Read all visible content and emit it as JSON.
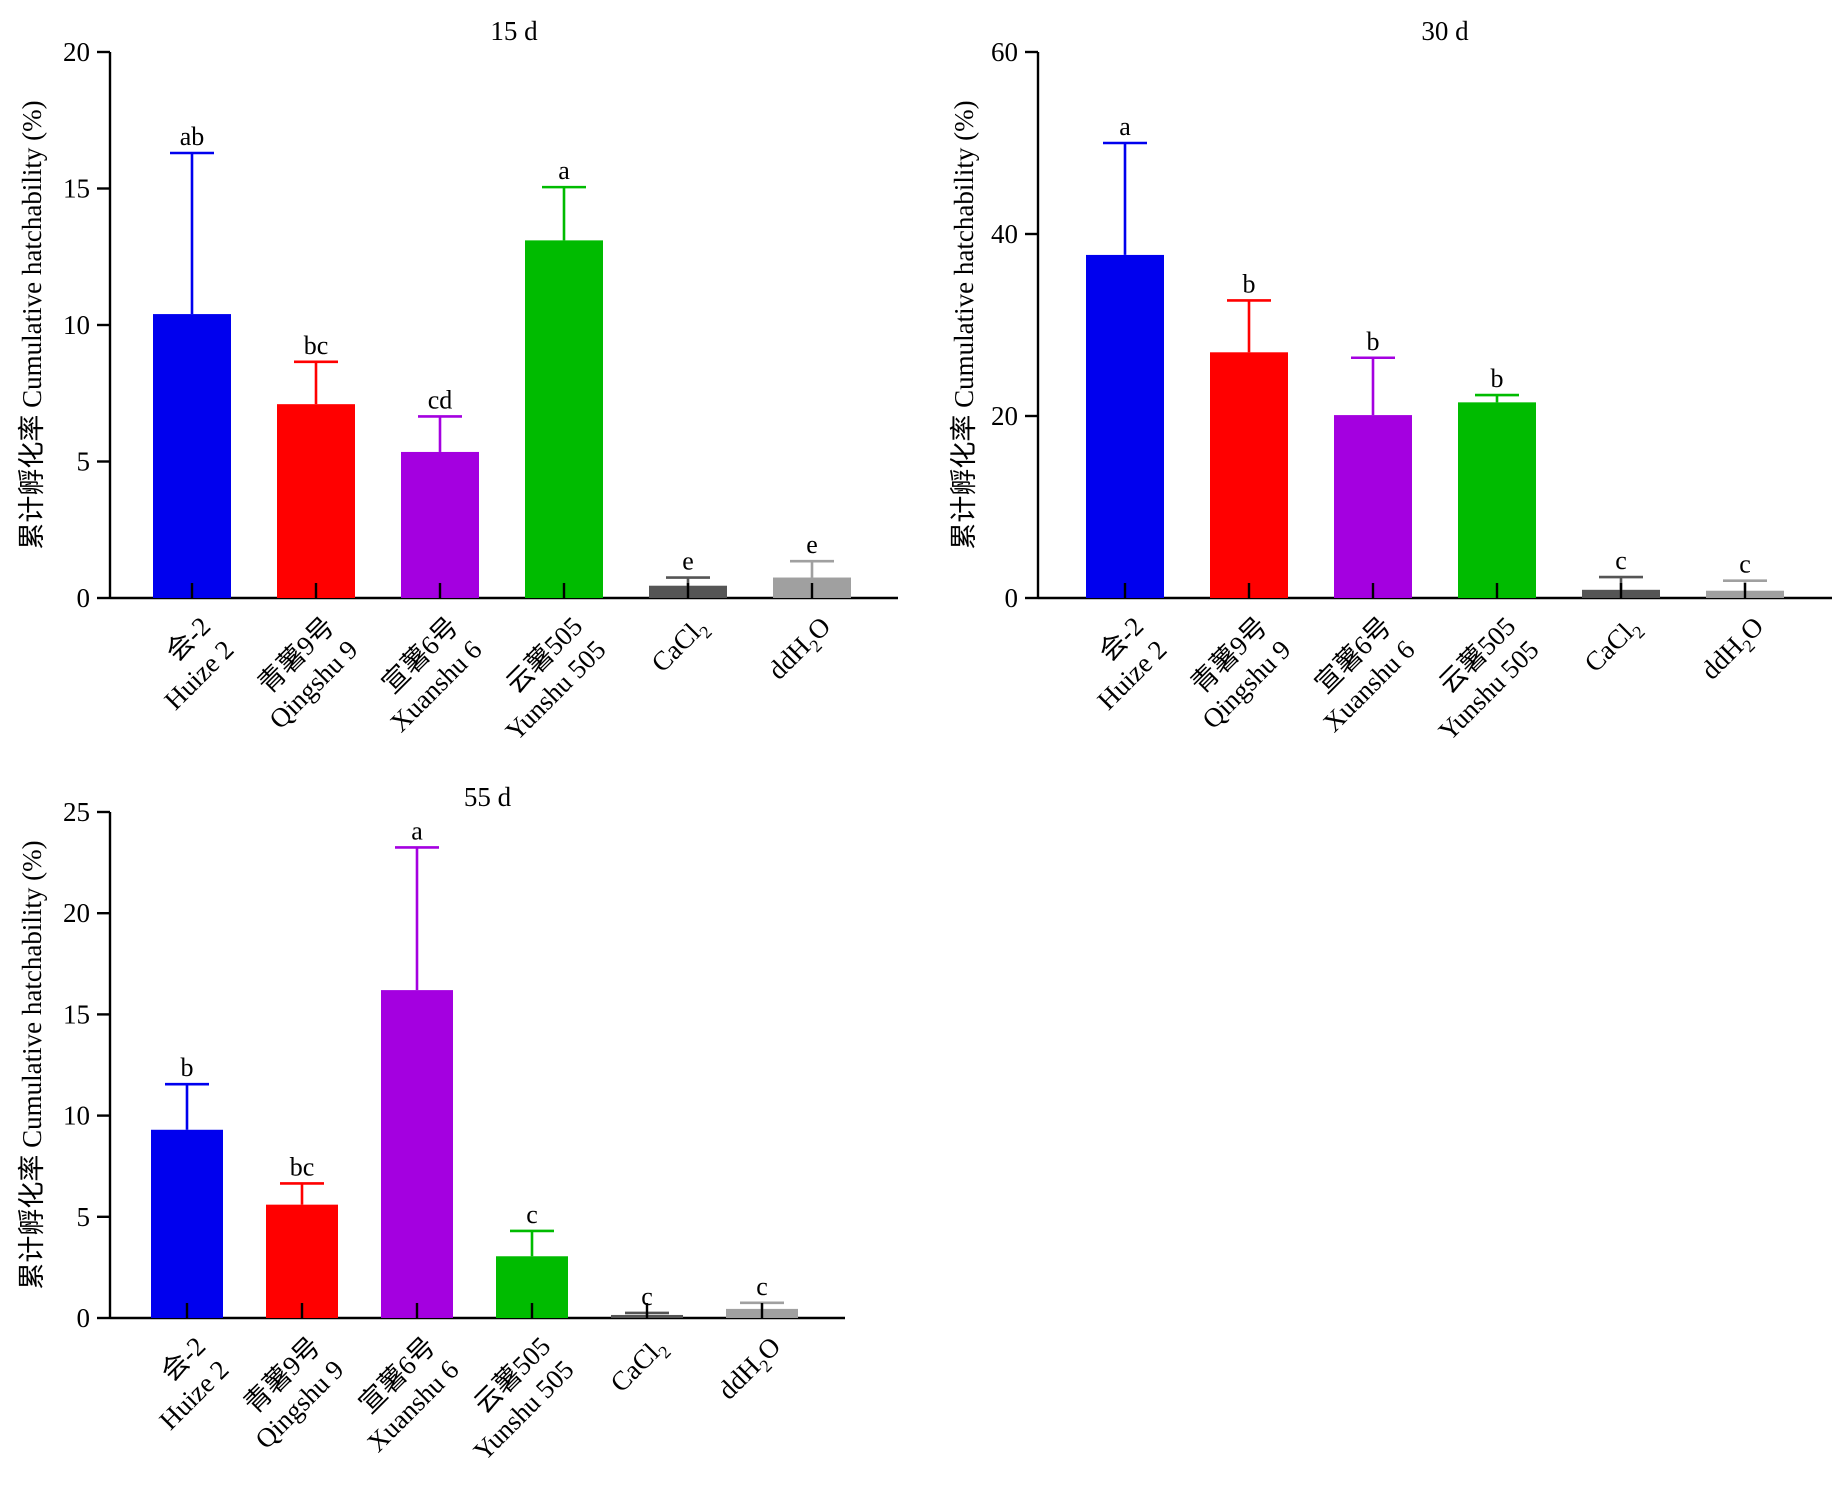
{
  "ylabel": "累计孵化率 Cumulative hatchability (%)",
  "categories": [
    {
      "cn": "会-2",
      "en": "Huize 2"
    },
    {
      "cn": "青薯9号",
      "en": "Qingshu 9"
    },
    {
      "cn": "宣薯6号",
      "en": "Xuanshu 6"
    },
    {
      "cn": "云薯505",
      "en": "Yunshu 505"
    },
    {
      "cn": "CaCl",
      "sub": "2"
    },
    {
      "cn": "ddH",
      "sub": "2",
      "tail": "O"
    }
  ],
  "colors": [
    "#0000ee",
    "#ff0000",
    "#a400e0",
    "#00bb00",
    "#555555",
    "#a0a0a0"
  ],
  "chart_data": [
    {
      "type": "bar",
      "title": "15 d",
      "ylim": [
        0,
        20
      ],
      "yticks": [
        0,
        5,
        10,
        15,
        20
      ],
      "values": [
        10.4,
        7.1,
        5.35,
        13.1,
        0.45,
        0.75
      ],
      "errors": [
        5.9,
        1.55,
        1.3,
        1.95,
        0.3,
        0.6
      ],
      "labels": [
        "ab",
        "bc",
        "cd",
        "a",
        "e",
        "e"
      ]
    },
    {
      "type": "bar",
      "title": "30 d",
      "ylim": [
        0,
        60
      ],
      "yticks": [
        0,
        20,
        40,
        60
      ],
      "values": [
        37.7,
        27.0,
        20.1,
        21.5,
        0.9,
        0.8
      ],
      "errors": [
        12.3,
        5.7,
        6.3,
        0.8,
        1.4,
        1.1
      ],
      "labels": [
        "a",
        "b",
        "b",
        "b",
        "c",
        "c"
      ]
    },
    {
      "type": "bar",
      "title": "55 d",
      "ylim": [
        0,
        25
      ],
      "yticks": [
        0,
        5,
        10,
        15,
        20,
        25
      ],
      "values": [
        9.3,
        5.6,
        16.2,
        3.05,
        0.15,
        0.45
      ],
      "errors": [
        2.25,
        1.05,
        7.05,
        1.25,
        0.1,
        0.3
      ],
      "labels": [
        "b",
        "bc",
        "a",
        "c",
        "c",
        "c"
      ]
    }
  ]
}
